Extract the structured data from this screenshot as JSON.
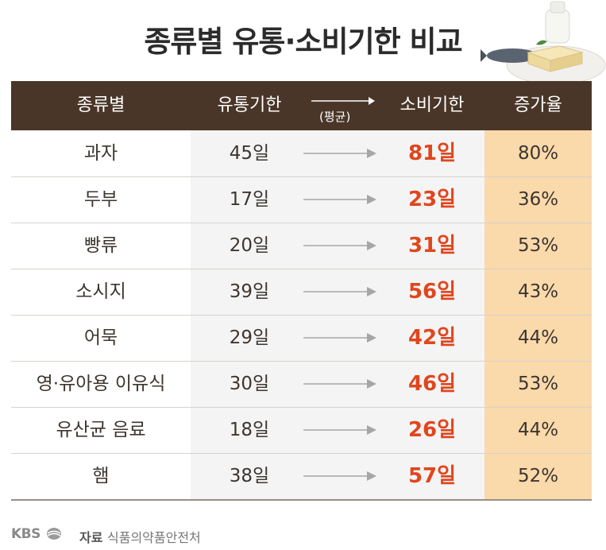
{
  "title": "종류별 유통·소비기한 비교",
  "headers": {
    "category": "종류별",
    "distribution": "유통기한",
    "average": "(평균)",
    "consumption": "소비기한",
    "increase": "증가율"
  },
  "colors": {
    "header_bg": "#4a3628",
    "highlight": "#e0461d",
    "rate_bg": "#fad9ab"
  },
  "chart_data": {
    "type": "table",
    "title": "종류별 유통·소비기한 비교",
    "columns": [
      "종류별",
      "유통기한",
      "소비기한",
      "증가율"
    ],
    "rows": [
      {
        "category": "과자",
        "distribution": "45일",
        "consumption": "81일",
        "increase": "80%"
      },
      {
        "category": "두부",
        "distribution": "17일",
        "consumption": "23일",
        "increase": "36%"
      },
      {
        "category": "빵류",
        "distribution": "20일",
        "consumption": "31일",
        "increase": "53%"
      },
      {
        "category": "소시지",
        "distribution": "39일",
        "consumption": "56일",
        "increase": "43%"
      },
      {
        "category": "어묵",
        "distribution": "29일",
        "consumption": "42일",
        "increase": "44%"
      },
      {
        "category": "영·유아용 이유식",
        "distribution": "30일",
        "consumption": "46일",
        "increase": "53%"
      },
      {
        "category": "유산균 음료",
        "distribution": "18일",
        "consumption": "26일",
        "increase": "44%"
      },
      {
        "category": "햄",
        "distribution": "38일",
        "consumption": "57일",
        "increase": "52%"
      }
    ]
  },
  "footer": {
    "logo": "KBS",
    "source_label": "자료",
    "source": "식품의약품안전처"
  }
}
